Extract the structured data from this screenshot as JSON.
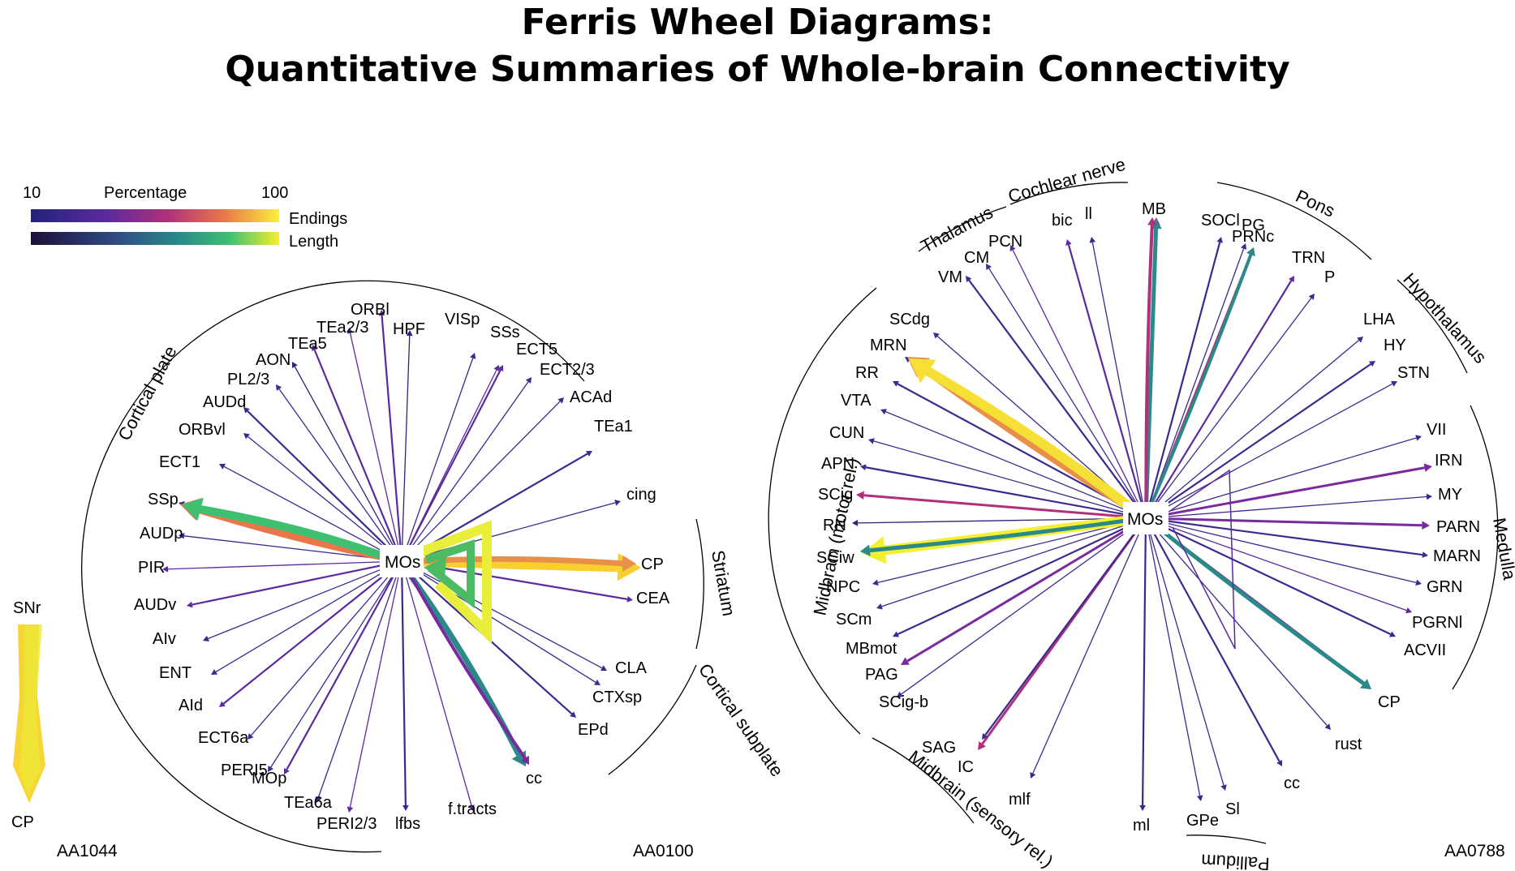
{
  "title": {
    "line1": "Ferris Wheel Diagrams:",
    "line2": "Quantitative Summaries of Whole-brain Connectivity"
  },
  "legend": {
    "min": "10",
    "label": "Percentage",
    "max": "100",
    "endings": "Endings",
    "length": "Length"
  },
  "panel_aa1044": {
    "id": "AA1044",
    "source": "SNr",
    "target": "CP"
  },
  "panel_aa0100": {
    "id": "AA0100",
    "center": "MOs",
    "regions": [
      "Cortical plate",
      "Striatum",
      "Cortical subplate"
    ],
    "targets": [
      "ORBl",
      "HPF",
      "TEa2/3",
      "TEa5",
      "AON",
      "PL2/3",
      "AUDd",
      "ORBvl",
      "ECT1",
      "SSp",
      "AUDp",
      "PIR",
      "AUDv",
      "AIv",
      "ENT",
      "AId",
      "ECT6a",
      "PERI5",
      "MOp",
      "TEa6a",
      "PERI2/3",
      "lfbs",
      "f.tracts",
      "cc",
      "EPd",
      "CTXsp",
      "CLA",
      "CEA",
      "CP",
      "cing",
      "TEa1",
      "ACAd",
      "ECT2/3",
      "ECT5",
      "SSs",
      "VISp"
    ]
  },
  "panel_aa0788": {
    "id": "AA0788",
    "center": "MOs",
    "regions": [
      "Thalamus",
      "Cochlear nerve",
      "Pons",
      "Hypothalamus",
      "Medulla",
      "Pallidum",
      "Midbrain (sensory rel.)",
      "Midbrain (motor rel.)"
    ],
    "targets": [
      "bic",
      "ll",
      "MB",
      "SOCl",
      "PG",
      "PRNc",
      "TRN",
      "P",
      "LHA",
      "HY",
      "STN",
      "VII",
      "IRN",
      "MY",
      "PARN",
      "MARN",
      "GRN",
      "PGRNl",
      "ACVII",
      "CP",
      "rust",
      "cc",
      "Sl",
      "GPe",
      "ml",
      "mlf",
      "IC",
      "SAG",
      "SCig-b",
      "PAG",
      "MBmot",
      "SCm",
      "NPC",
      "SCiw",
      "RN",
      "SCig",
      "APN",
      "CUN",
      "VTA",
      "RR",
      "MRN",
      "SCdg",
      "VM",
      "CM",
      "PCN"
    ]
  },
  "colors": {
    "endings_scale": [
      "#22237a",
      "#5a2a9e",
      "#b0307a",
      "#e8784a",
      "#f7d030",
      "#fbf03a"
    ],
    "length_scale": [
      "#1e0f3a",
      "#2f4d84",
      "#2a8a8a",
      "#3ec070",
      "#b8de3a",
      "#f4f030"
    ]
  }
}
